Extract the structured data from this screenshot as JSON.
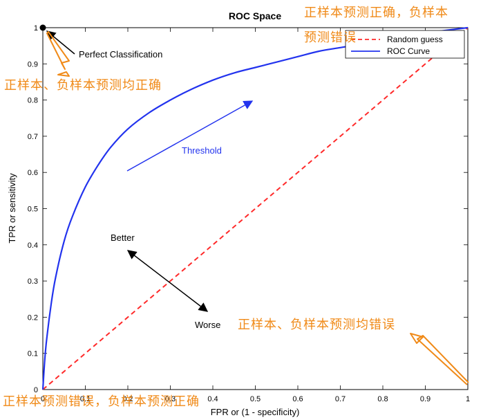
{
  "chart_data": {
    "type": "line",
    "title": "ROC Space",
    "xlabel": "FPR or (1 - specificity)",
    "ylabel": "TPR or sensitivity",
    "xlim": [
      0,
      1
    ],
    "ylim": [
      0,
      1
    ],
    "xticks": [
      "0",
      "0.1",
      "0.2",
      "0.3",
      "0.4",
      "0.5",
      "0.6",
      "0.7",
      "0.8",
      "0.9",
      "1"
    ],
    "yticks": [
      "0",
      "0.1",
      "0.2",
      "0.3",
      "0.4",
      "0.5",
      "0.6",
      "0.7",
      "0.8",
      "0.9",
      "1"
    ],
    "grid": false,
    "legend_position": "top-right",
    "series": [
      {
        "name": "Random guess",
        "color": "#ff2a2a",
        "style": "dashed",
        "x": [
          0,
          1
        ],
        "y": [
          0,
          1
        ]
      },
      {
        "name": "ROC Curve",
        "color": "#2233ee",
        "style": "solid",
        "x": [
          0,
          0.005,
          0.01,
          0.02,
          0.03,
          0.05,
          0.07,
          0.1,
          0.13,
          0.16,
          0.2,
          0.25,
          0.3,
          0.35,
          0.4,
          0.45,
          0.5,
          0.55,
          0.6,
          0.65,
          0.7,
          0.75,
          0.8,
          0.85,
          0.9,
          0.95,
          1.0
        ],
        "y": [
          0,
          0.09,
          0.15,
          0.24,
          0.31,
          0.41,
          0.48,
          0.56,
          0.62,
          0.67,
          0.72,
          0.765,
          0.8,
          0.83,
          0.855,
          0.875,
          0.89,
          0.905,
          0.92,
          0.935,
          0.945,
          0.955,
          0.965,
          0.975,
          0.985,
          0.993,
          1.0
        ]
      }
    ],
    "annotations": [
      {
        "text": "Perfect Classification",
        "x": 0.0,
        "y": 1.0
      },
      {
        "text": "Threshold",
        "x": 0.25,
        "y": 0.67
      },
      {
        "text": "Better",
        "x": 0.2,
        "y": 0.41
      },
      {
        "text": "Worse",
        "x": 0.4,
        "y": 0.18
      }
    ],
    "handwritten_notes": [
      "正样本预测正确，负样本预测错误",
      "正样本、负样本预测均正确",
      "正样本、负样本预测均错误",
      "正样本预测错误，负样本预测正确"
    ]
  },
  "colors": {
    "axes": "#000000",
    "annotation_arrow": "#000000",
    "threshold_arrow": "#2233ee",
    "handwritten": "#f08a18"
  }
}
